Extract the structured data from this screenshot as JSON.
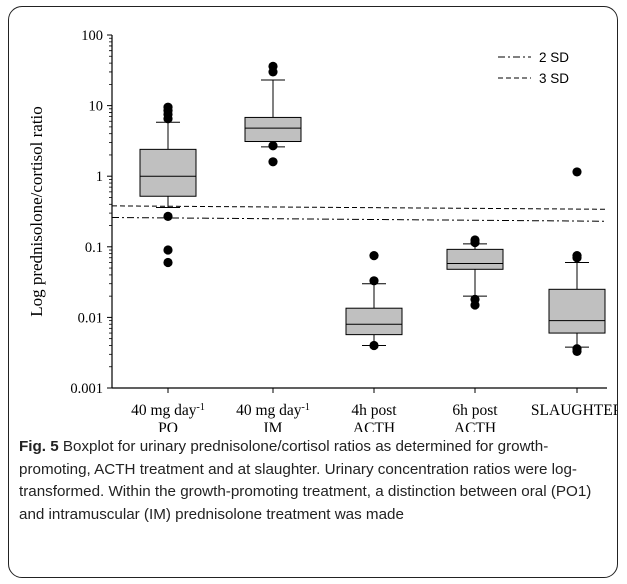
{
  "chart_data": {
    "type": "boxplot",
    "ylabel": "Log prednisolone/cortisol ratio",
    "yscale": "log",
    "ylim": [
      0.001,
      100
    ],
    "yticks": [
      "0.001",
      "0.01",
      "0.1",
      "1",
      "10",
      "100"
    ],
    "yticks_values": [
      0.001,
      0.01,
      0.1,
      1,
      10,
      100
    ],
    "categories": [
      {
        "line1_main": "40 mg day",
        "line1_sup": "-1",
        "line2": "PO"
      },
      {
        "line1_main": "40 mg day",
        "line1_sup": "-1",
        "line2": "IM"
      },
      {
        "line1_main": "4h post",
        "line1_sup": "",
        "line2": "ACTH"
      },
      {
        "line1_main": "6h post",
        "line1_sup": "",
        "line2": "ACTH"
      },
      {
        "line1_main": "SLAUGHTER",
        "line1_sup": "",
        "line2": ""
      }
    ],
    "boxes": [
      {
        "whisker_low": 0.36,
        "q1": 0.52,
        "median": 1.0,
        "q3": 2.4,
        "whisker_high": 5.8,
        "outliers": [
          0.27,
          0.09,
          0.06,
          6.5,
          7.5,
          8.5,
          9.5
        ]
      },
      {
        "whisker_low": 2.6,
        "q1": 3.1,
        "median": 4.8,
        "q3": 6.8,
        "whisker_high": 23,
        "outliers": [
          1.6,
          2.7,
          30,
          36
        ]
      },
      {
        "whisker_low": 0.004,
        "q1": 0.0057,
        "median": 0.008,
        "q3": 0.0135,
        "whisker_high": 0.03,
        "outliers": [
          0.004,
          0.033,
          0.075
        ]
      },
      {
        "whisker_low": 0.02,
        "q1": 0.048,
        "median": 0.058,
        "q3": 0.092,
        "whisker_high": 0.11,
        "outliers": [
          0.015,
          0.018,
          0.115,
          0.125
        ]
      },
      {
        "whisker_low": 0.0038,
        "q1": 0.006,
        "median": 0.009,
        "q3": 0.025,
        "whisker_high": 0.06,
        "outliers": [
          0.0033,
          0.0036,
          0.07,
          0.075,
          1.15
        ]
      }
    ],
    "reference_lines": [
      {
        "name": "2 SD",
        "style": "dash-dot",
        "y_start": 0.26,
        "y_end": 0.23
      },
      {
        "name": "3 SD",
        "style": "dashed",
        "y_start": 0.38,
        "y_end": 0.34
      }
    ],
    "legend_position": "top-right",
    "box_fill": "#c0c0c0",
    "grid": false
  },
  "caption": {
    "figure_label": "Fig. 5",
    "text": " Boxplot for urinary prednisolone/cortisol ratios as determined for growth-promoting, ACTH treatment and at slaughter. Urinary concentration ratios were log-transformed. Within the growth-promoting treatment, a distinction between oral (PO1) and intramuscular (IM) prednisolone treatment was made"
  }
}
